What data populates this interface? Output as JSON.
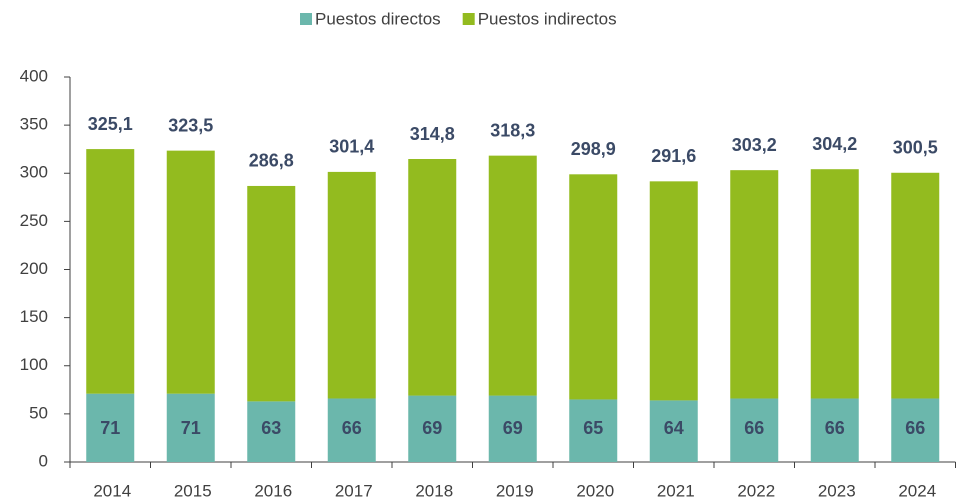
{
  "chart_data": {
    "type": "stacked_bar",
    "categories": [
      "2014",
      "2015",
      "2016",
      "2017",
      "2018",
      "2019",
      "2020",
      "2021",
      "2022",
      "2023",
      "2024"
    ],
    "series": [
      {
        "name": "Puestos directos",
        "color": "#6bb7ac",
        "values": [
          71,
          71,
          63,
          66,
          69,
          69,
          65,
          64,
          66,
          66,
          66
        ]
      },
      {
        "name": "Puestos indirectos",
        "color": "#93bb1f",
        "values": [
          254.1,
          252.5,
          223.8,
          235.4,
          245.8,
          249.3,
          233.9,
          227.6,
          237.2,
          238.2,
          234.5
        ]
      }
    ],
    "totals": [
      325.1,
      323.5,
      286.8,
      301.4,
      314.8,
      318.3,
      298.9,
      291.6,
      303.2,
      304.2,
      300.5
    ],
    "total_labels": [
      "325,1",
      "323,5",
      "286,8",
      "301,4",
      "314,8",
      "318,3",
      "298,9",
      "291,6",
      "303,2",
      "304,2",
      "300,5"
    ],
    "ylim": [
      0,
      400
    ],
    "yticks": [
      0,
      50,
      100,
      150,
      200,
      250,
      300,
      350,
      400
    ],
    "grid": false,
    "legend": "top"
  }
}
